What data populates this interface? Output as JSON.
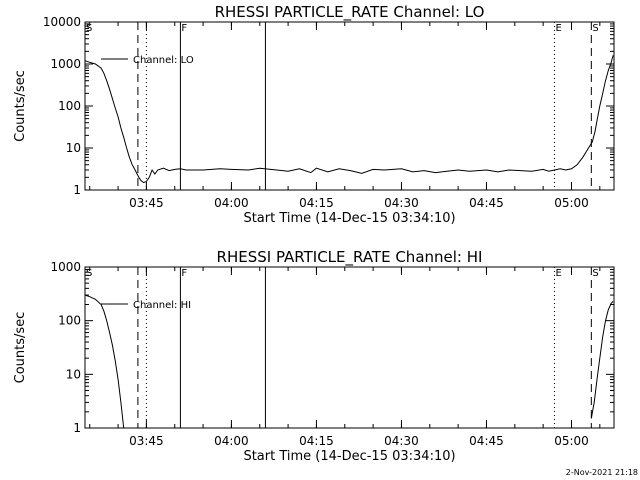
{
  "chart_data": [
    {
      "type": "line",
      "title": "RHESSI PARTICLE_RATE Channel: LO",
      "xlabel": "Start Time (14-Dec-15 03:34:10)",
      "ylabel": "Counts/sec",
      "x_range": [
        "03:34:10",
        "05:07:30"
      ],
      "x_ticks": [
        "03:45",
        "04:00",
        "04:15",
        "04:30",
        "04:45",
        "05:00"
      ],
      "y_scale": "log",
      "ylim": [
        1,
        10000
      ],
      "y_ticks": [
        "1",
        "10",
        "100",
        "1000",
        "10000"
      ],
      "grid": false,
      "legend": {
        "position": "top-left",
        "entries": [
          "Channel: LO"
        ]
      },
      "series": [
        {
          "name": "Channel: LO",
          "points": [
            [
              "03:34:10",
              1200
            ],
            [
              "03:35:00",
              1100
            ],
            [
              "03:36:00",
              1000
            ],
            [
              "03:37:00",
              800
            ],
            [
              "03:37:30",
              600
            ],
            [
              "03:38:00",
              400
            ],
            [
              "03:38:30",
              250
            ],
            [
              "03:39:00",
              150
            ],
            [
              "03:39:30",
              90
            ],
            [
              "03:40:00",
              55
            ],
            [
              "03:40:30",
              30
            ],
            [
              "03:41:00",
              18
            ],
            [
              "03:41:30",
              10
            ],
            [
              "03:42:00",
              6
            ],
            [
              "03:42:30",
              4
            ],
            [
              "03:43:00",
              3
            ],
            [
              "03:43:30",
              2.2
            ],
            [
              "03:44:00",
              1.7
            ],
            [
              "03:44:30",
              1.5
            ],
            [
              "03:45:00",
              1.6
            ],
            [
              "03:45:30",
              2
            ],
            [
              "03:46:00",
              3
            ],
            [
              "03:46:30",
              2.4
            ],
            [
              "03:47:00",
              3
            ],
            [
              "03:48:00",
              3.3
            ],
            [
              "03:49:00",
              2.9
            ],
            [
              "03:50:00",
              3.1
            ],
            [
              "03:51:00",
              3.2
            ],
            [
              "03:52:00",
              3
            ],
            [
              "03:55:00",
              3
            ],
            [
              "03:58:00",
              3.2
            ],
            [
              "04:00:00",
              3.1
            ],
            [
              "04:03:00",
              3
            ],
            [
              "04:05:00",
              3.3
            ],
            [
              "04:08:00",
              3
            ],
            [
              "04:10:00",
              2.8
            ],
            [
              "04:12:00",
              3.2
            ],
            [
              "04:14:00",
              2.6
            ],
            [
              "04:15:00",
              3.3
            ],
            [
              "04:17:00",
              2.7
            ],
            [
              "04:19:00",
              3.2
            ],
            [
              "04:21:00",
              2.9
            ],
            [
              "04:23:00",
              2.5
            ],
            [
              "04:25:00",
              3.1
            ],
            [
              "04:27:00",
              3
            ],
            [
              "04:30:00",
              3.2
            ],
            [
              "04:32:00",
              2.7
            ],
            [
              "04:34:00",
              2.9
            ],
            [
              "04:36:00",
              2.6
            ],
            [
              "04:38:00",
              2.8
            ],
            [
              "04:40:00",
              3
            ],
            [
              "04:42:00",
              2.8
            ],
            [
              "04:45:00",
              3
            ],
            [
              "04:47:00",
              2.7
            ],
            [
              "04:49:00",
              3
            ],
            [
              "04:51:00",
              2.9
            ],
            [
              "04:53:00",
              2.8
            ],
            [
              "04:55:00",
              3.1
            ],
            [
              "04:56:00",
              2.8
            ],
            [
              "04:57:00",
              3
            ],
            [
              "04:58:00",
              3.2
            ],
            [
              "04:59:00",
              3
            ],
            [
              "05:00:00",
              3.2
            ],
            [
              "05:01:00",
              4
            ],
            [
              "05:02:00",
              6
            ],
            [
              "05:03:00",
              10
            ],
            [
              "05:03:40",
              14
            ],
            [
              "05:04:10",
              25
            ],
            [
              "05:04:30",
              45
            ],
            [
              "05:05:00",
              100
            ],
            [
              "05:05:30",
              200
            ],
            [
              "05:06:00",
              400
            ],
            [
              "05:06:30",
              700
            ],
            [
              "05:07:00",
              1100
            ],
            [
              "05:07:20",
              1600
            ]
          ]
        }
      ],
      "markers": [
        {
          "label": "S",
          "time": "03:34:10",
          "style": "dashdot"
        },
        {
          "label": "",
          "time": "03:43:30",
          "style": "dashed"
        },
        {
          "label": "",
          "time": "03:45:00",
          "style": "dotted"
        },
        {
          "label": "F",
          "time": "03:51:00",
          "style": "solid"
        },
        {
          "label": "",
          "time": "04:06:00",
          "style": "solid"
        },
        {
          "label": "E",
          "time": "04:57:00",
          "style": "dotted"
        },
        {
          "label": "S",
          "time": "05:03:30",
          "style": "dashed"
        },
        {
          "label": "",
          "time": "05:07:30",
          "style": "dashdot"
        }
      ]
    },
    {
      "type": "line",
      "title": "RHESSI PARTICLE_RATE Channel: HI",
      "xlabel": "Start Time (14-Dec-15 03:34:10)",
      "ylabel": "Counts/sec",
      "x_range": [
        "03:34:10",
        "05:07:30"
      ],
      "x_ticks": [
        "03:45",
        "04:00",
        "04:15",
        "04:30",
        "04:45",
        "05:00"
      ],
      "y_scale": "log",
      "ylim": [
        1,
        1000
      ],
      "y_ticks": [
        "1",
        "10",
        "100",
        "1000"
      ],
      "grid": false,
      "legend": {
        "position": "top-left",
        "entries": [
          "Channel: HI"
        ]
      },
      "series": [
        {
          "name": "Channel: HI",
          "points": [
            [
              "03:34:10",
              300
            ],
            [
              "03:35:00",
              280
            ],
            [
              "03:36:00",
              250
            ],
            [
              "03:37:00",
              200
            ],
            [
              "03:37:30",
              150
            ],
            [
              "03:38:00",
              100
            ],
            [
              "03:38:30",
              60
            ],
            [
              "03:39:00",
              35
            ],
            [
              "03:39:30",
              18
            ],
            [
              "03:40:00",
              8
            ],
            [
              "03:40:30",
              3
            ],
            [
              "03:41:00",
              1
            ],
            null,
            [
              "05:03:30",
              1.5
            ],
            [
              "05:04:00",
              3
            ],
            [
              "05:04:30",
              8
            ],
            [
              "05:05:00",
              20
            ],
            [
              "05:05:30",
              50
            ],
            [
              "05:06:00",
              100
            ],
            [
              "05:06:30",
              160
            ],
            [
              "05:07:00",
              210
            ],
            [
              "05:07:20",
              230
            ]
          ]
        }
      ],
      "markers": [
        {
          "label": "S",
          "time": "03:34:10",
          "style": "dashdot"
        },
        {
          "label": "",
          "time": "03:43:30",
          "style": "dashed"
        },
        {
          "label": "",
          "time": "03:45:00",
          "style": "dotted"
        },
        {
          "label": "F",
          "time": "03:51:00",
          "style": "solid"
        },
        {
          "label": "",
          "time": "04:06:00",
          "style": "solid"
        },
        {
          "label": "E",
          "time": "04:57:00",
          "style": "dotted"
        },
        {
          "label": "S",
          "time": "05:03:30",
          "style": "dashed"
        },
        {
          "label": "",
          "time": "05:07:30",
          "style": "dashdot"
        }
      ]
    }
  ],
  "footer": {
    "timestamp": "2-Nov-2021 21:18"
  }
}
